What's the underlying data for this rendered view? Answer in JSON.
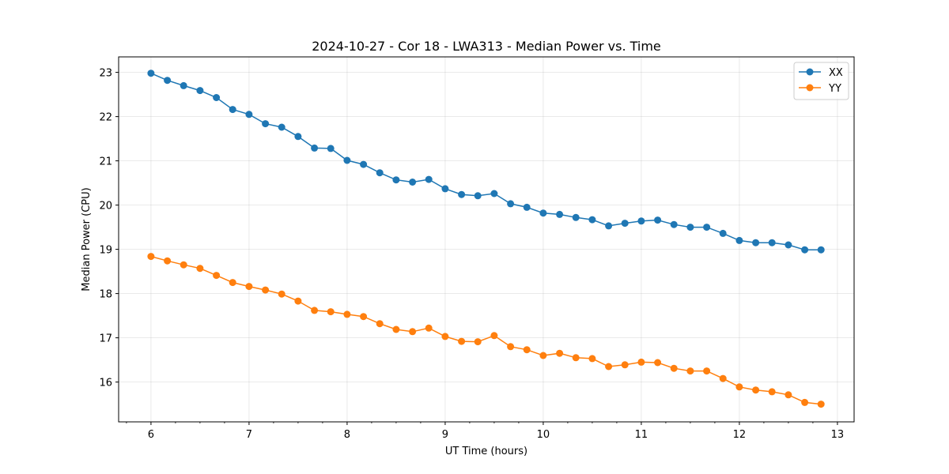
{
  "chart_data": {
    "type": "line",
    "title": "2024-10-27 - Cor 18 - LWA313 - Median Power vs. Time",
    "xlabel": "UT Time (hours)",
    "ylabel": "Median Power (CPU)",
    "xlim": [
      5.67,
      13.17
    ],
    "ylim": [
      15.1,
      23.35
    ],
    "xticks": [
      6,
      7,
      8,
      9,
      10,
      11,
      12,
      13
    ],
    "yticks": [
      16,
      17,
      18,
      19,
      20,
      21,
      22,
      23
    ],
    "x_minor_step": 0.25,
    "grid": true,
    "legend_position": "top-right",
    "x": [
      6.0,
      6.1667,
      6.3333,
      6.5,
      6.6667,
      6.8333,
      7.0,
      7.1667,
      7.3333,
      7.5,
      7.6667,
      7.8333,
      8.0,
      8.1667,
      8.3333,
      8.5,
      8.6667,
      8.8333,
      9.0,
      9.1667,
      9.3333,
      9.5,
      9.6667,
      9.8333,
      10.0,
      10.1667,
      10.3333,
      10.5,
      10.6667,
      10.8333,
      11.0,
      11.1667,
      11.3333,
      11.5,
      11.6667,
      11.8333,
      12.0,
      12.1667,
      12.3333,
      12.5,
      12.6667,
      12.8333
    ],
    "series": [
      {
        "name": "XX",
        "color": "#1f77b4",
        "values": [
          22.98,
          22.82,
          22.7,
          22.59,
          22.43,
          22.16,
          22.05,
          21.84,
          21.76,
          21.55,
          21.29,
          21.28,
          21.01,
          20.92,
          20.73,
          20.57,
          20.52,
          20.58,
          20.37,
          20.24,
          20.21,
          20.26,
          20.03,
          19.95,
          19.82,
          19.79,
          19.72,
          19.67,
          19.53,
          19.59,
          19.64,
          19.66,
          19.56,
          19.5,
          19.5,
          19.36,
          19.2,
          19.15,
          19.15,
          19.1,
          18.99,
          18.99
        ]
      },
      {
        "name": "YY",
        "color": "#ff7f0e",
        "values": [
          18.84,
          18.74,
          18.65,
          18.57,
          18.41,
          18.25,
          18.16,
          18.08,
          17.99,
          17.83,
          17.62,
          17.59,
          17.53,
          17.48,
          17.32,
          17.19,
          17.14,
          17.22,
          17.03,
          16.92,
          16.91,
          17.05,
          16.8,
          16.73,
          16.6,
          16.65,
          16.55,
          16.53,
          16.35,
          16.39,
          16.45,
          16.44,
          16.31,
          16.25,
          16.25,
          16.08,
          15.89,
          15.82,
          15.78,
          15.71,
          15.54,
          15.5
        ]
      }
    ]
  }
}
